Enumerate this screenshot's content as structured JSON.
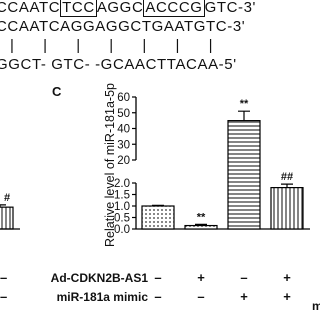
{
  "sequence": {
    "line1": [
      "CCAATC",
      "TCC",
      "AGGC",
      "ACCCG",
      "GTC-3'"
    ],
    "boxed": [
      1,
      3
    ],
    "line2": "CCAATCAGGAGGCTGAATGTC-3'",
    "line3": "|      |      |      |      |      |      |",
    "line4": "GGCT- GTC- -GCAACTTACAA-5'"
  },
  "left_fragment": {
    "value": 0.95,
    "error": 0.1,
    "annotation": "#",
    "signs": [
      "–",
      "–"
    ]
  },
  "chart_data": {
    "type": "bar",
    "panel_label": "C",
    "ylabel": "Relative level of miR-181a-5p",
    "color": "#000000",
    "lower": {
      "ylim": [
        0,
        2
      ],
      "yticks": [
        {
          "value": 0,
          "label": "0.0"
        },
        {
          "value": 0.5,
          "label": "0.5"
        },
        {
          "value": 1,
          "label": "1.0"
        },
        {
          "value": 1.5,
          "label": "1.5"
        },
        {
          "value": 2,
          "label": "2.0"
        }
      ]
    },
    "upper": {
      "ylim": [
        20,
        60
      ],
      "yticks": [
        20,
        30,
        40,
        50,
        60
      ]
    },
    "values": [
      1.0,
      0.15,
      45,
      1.8
    ],
    "errors": [
      0.03,
      0.05,
      6,
      0.15
    ],
    "patterns": [
      "dots",
      "dots",
      "horizontal",
      "vertical"
    ],
    "annotations": [
      null,
      "**",
      "**",
      "##"
    ],
    "conditions": [
      {
        "name": "Ad-CDKN2B-AS1",
        "signs": [
          "–",
          "+",
          "–",
          "+"
        ]
      },
      {
        "name": "miR-181a mimic",
        "signs": [
          "–",
          "–",
          "+",
          "+"
        ]
      }
    ],
    "right_cut_text": "m"
  }
}
